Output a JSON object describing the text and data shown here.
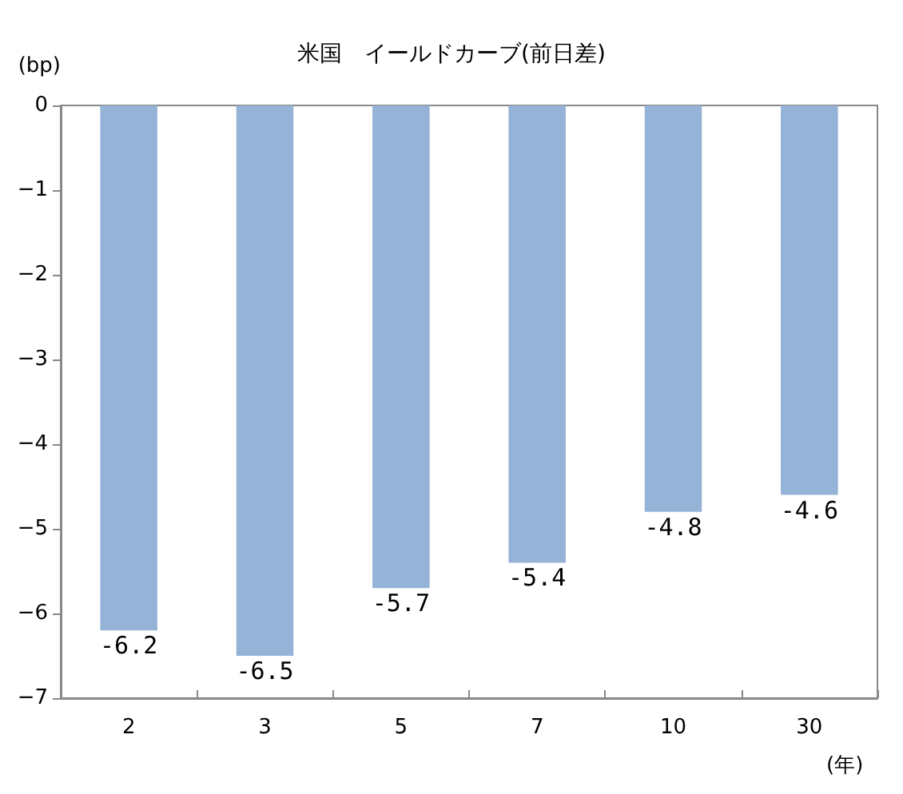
{
  "chart_data": {
    "type": "bar",
    "title": "米国　イールドカーブ(前日差)",
    "ylabel": "(bp)",
    "xlabel": "(年)",
    "categories": [
      "2",
      "3",
      "5",
      "7",
      "10",
      "30"
    ],
    "values": [
      -6.2,
      -6.5,
      -5.7,
      -5.4,
      -4.8,
      -4.6
    ],
    "color": "#95b3d7",
    "ylim": [
      -7,
      0
    ],
    "yticks": [
      -7,
      -6,
      -5,
      -4,
      -3,
      -2,
      -1,
      0
    ],
    "data_labels": true,
    "grid": false
  }
}
